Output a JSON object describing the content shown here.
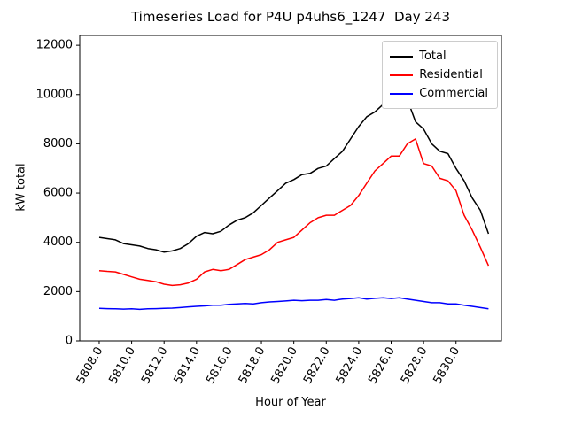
{
  "chart_data": {
    "type": "line",
    "title": "Timeseries Load for P4U p4uhs6_1247  Day 243",
    "xlabel": "Hour of Year",
    "ylabel": "kW total",
    "xlim": [
      5806.8,
      5832.8
    ],
    "ylim": [
      0,
      12400
    ],
    "grid": false,
    "legend_position": "upper right",
    "yticks": [
      0,
      2000,
      4000,
      6000,
      8000,
      10000,
      12000
    ],
    "xticks": [
      5808,
      5810,
      5812,
      5814,
      5816,
      5818,
      5820,
      5822,
      5824,
      5826,
      5828,
      5830
    ],
    "xtick_labels": [
      "5808.0",
      "5810.0",
      "5812.0",
      "5814.0",
      "5816.0",
      "5818.0",
      "5820.0",
      "5822.0",
      "5824.0",
      "5826.0",
      "5828.0",
      "5830.0"
    ],
    "x": [
      5808.0,
      5808.5,
      5809.0,
      5809.5,
      5810.0,
      5810.5,
      5811.0,
      5811.5,
      5812.0,
      5812.5,
      5813.0,
      5813.5,
      5814.0,
      5814.5,
      5815.0,
      5815.5,
      5816.0,
      5816.5,
      5817.0,
      5817.5,
      5818.0,
      5818.5,
      5819.0,
      5819.5,
      5820.0,
      5820.5,
      5821.0,
      5821.5,
      5822.0,
      5822.5,
      5823.0,
      5823.5,
      5824.0,
      5824.5,
      5825.0,
      5825.5,
      5826.0,
      5826.5,
      5827.0,
      5827.5,
      5828.0,
      5828.5,
      5829.0,
      5829.5,
      5830.0,
      5830.5,
      5831.0,
      5831.5,
      5832.0
    ],
    "series": [
      {
        "name": "Total",
        "color": "#000000",
        "values": [
          4200,
          4150,
          4100,
          3950,
          3900,
          3850,
          3750,
          3700,
          3600,
          3650,
          3750,
          3950,
          4250,
          4400,
          4350,
          4450,
          4700,
          4900,
          5000,
          5200,
          5500,
          5800,
          6100,
          6400,
          6550,
          6750,
          6800,
          7000,
          7100,
          7400,
          7700,
          8200,
          8700,
          9100,
          9300,
          9600,
          9500,
          9900,
          9800,
          8900,
          8600,
          8000,
          7700,
          7600,
          7000,
          6500,
          5800,
          5300,
          4350
        ]
      },
      {
        "name": "Residential",
        "color": "#ff0000",
        "values": [
          2850,
          2820,
          2800,
          2700,
          2600,
          2500,
          2450,
          2400,
          2300,
          2250,
          2280,
          2350,
          2500,
          2800,
          2900,
          2850,
          2900,
          3100,
          3300,
          3400,
          3500,
          3700,
          4000,
          4100,
          4200,
          4500,
          4800,
          5000,
          5100,
          5100,
          5300,
          5500,
          5900,
          6400,
          6900,
          7200,
          7500,
          7500,
          8000,
          8200,
          7200,
          7100,
          6600,
          6500,
          6100,
          5100,
          4500,
          3800,
          3050
        ]
      },
      {
        "name": "Commercial",
        "color": "#0000ff",
        "values": [
          1320,
          1310,
          1300,
          1290,
          1300,
          1280,
          1300,
          1310,
          1320,
          1330,
          1350,
          1380,
          1400,
          1420,
          1450,
          1450,
          1480,
          1500,
          1520,
          1500,
          1550,
          1580,
          1600,
          1620,
          1650,
          1630,
          1650,
          1650,
          1680,
          1650,
          1700,
          1720,
          1750,
          1700,
          1730,
          1750,
          1720,
          1750,
          1700,
          1650,
          1600,
          1550,
          1550,
          1500,
          1500,
          1450,
          1400,
          1350,
          1300
        ]
      }
    ]
  }
}
